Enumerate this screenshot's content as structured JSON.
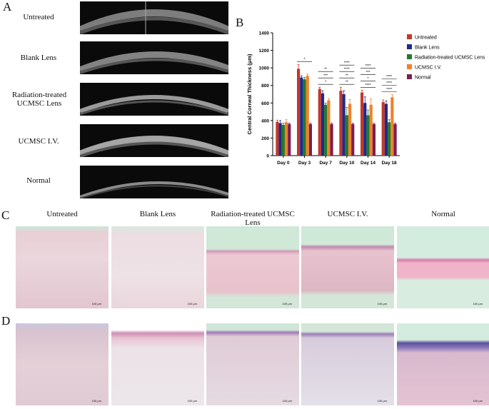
{
  "panels": {
    "A": "A",
    "B": "B",
    "C": "C",
    "D": "D"
  },
  "panel_a": {
    "labels": [
      "Untreated",
      "Blank Lens",
      "Radiation-treated UCMSC Lens",
      "UCMSC I.V.",
      "Normal"
    ]
  },
  "columns": [
    "Untreated",
    "Blank Lens",
    "Radiation-treated UCMSC Lens",
    "UCMSC I.V.",
    "Normal"
  ],
  "scale_bar": "100 μm",
  "chart_data": {
    "type": "bar",
    "ylabel": "Central Corneal Thickness (μm)",
    "ylim": [
      0,
      1400
    ],
    "yticks": [
      0,
      200,
      400,
      600,
      800,
      1000,
      1200,
      1400
    ],
    "categories": [
      "Day 0",
      "Day 3",
      "Day 7",
      "Day 10",
      "Day 14",
      "Day 18"
    ],
    "legend_position": "right",
    "series": [
      {
        "name": "Untreated",
        "color": "#c0392b",
        "values": [
          385,
          990,
          760,
          740,
          720,
          610
        ],
        "errors": [
          20,
          50,
          20,
          40,
          25,
          25
        ]
      },
      {
        "name": "Blank Lens",
        "color": "#1f2a8c",
        "values": [
          370,
          890,
          710,
          700,
          600,
          590
        ],
        "errors": [
          30,
          20,
          30,
          40,
          70,
          35
        ]
      },
      {
        "name": "Radiation-treated UCMSC Lens",
        "color": "#1f7a2e",
        "values": [
          350,
          870,
          580,
          460,
          460,
          380
        ],
        "errors": [
          20,
          20,
          20,
          90,
          60,
          30
        ]
      },
      {
        "name": "UCMSC I.V.",
        "color": "#f2802a",
        "values": [
          380,
          910,
          630,
          590,
          580,
          665
        ],
        "errors": [
          30,
          20,
          20,
          50,
          70,
          30
        ]
      },
      {
        "name": "Normal",
        "color": "#7a1f4f",
        "values": [
          360,
          360,
          360,
          360,
          360,
          360
        ],
        "errors": [
          10,
          10,
          10,
          10,
          10,
          10
        ]
      }
    ],
    "significance": {
      "Day 3": [
        "*"
      ],
      "Day 7": [
        "*",
        "***",
        "**"
      ],
      "Day 10": [
        "**",
        "**",
        "****",
        "****"
      ],
      "Day 14": [
        "****",
        "*",
        "***",
        "****"
      ],
      "Day 18": [
        "****",
        "****",
        "****"
      ]
    }
  }
}
